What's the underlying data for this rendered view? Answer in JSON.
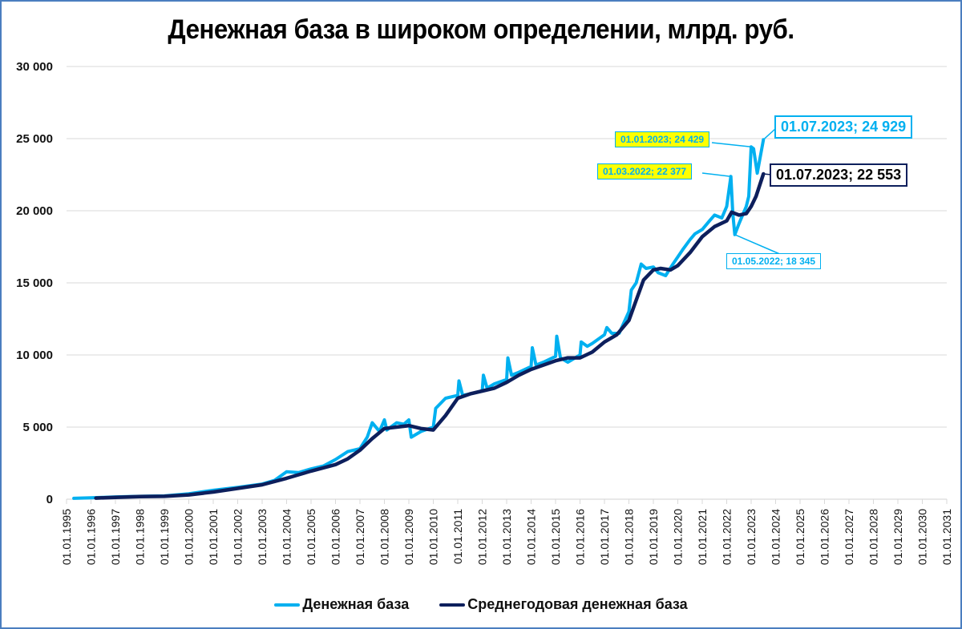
{
  "chart_data": {
    "type": "line",
    "title": "Денежная база в широком определении, млрд. руб.",
    "xlabel": "",
    "ylabel": "",
    "ylim": [
      0,
      30000
    ],
    "xlim": [
      "01.01.1995",
      "01.01.2031"
    ],
    "grid": true,
    "legend_position": "bottom",
    "y_ticks": [
      "0",
      "5 000",
      "10 000",
      "15 000",
      "20 000",
      "25 000",
      "30 000"
    ],
    "x_ticks": [
      "01.01.1995",
      "01.01.1996",
      "01.01.1997",
      "01.01.1998",
      "01.01.1999",
      "01.01.2000",
      "01.01.2001",
      "01.01.2002",
      "01.01.2003",
      "01.01.2004",
      "01.01.2005",
      "01.01.2006",
      "01.01.2007",
      "01.01.2008",
      "01.01.2009",
      "01.01.2010",
      "01.01.2011",
      "01.01.2012",
      "01.01.2013",
      "01.01.2014",
      "01.01.2015",
      "01.01.2016",
      "01.01.2017",
      "01.01.2018",
      "01.01.2019",
      "01.01.2020",
      "01.01.2021",
      "01.01.2022",
      "01.01.2023",
      "01.01.2024",
      "01.01.2025",
      "01.01.2026",
      "01.01.2027",
      "01.01.2028",
      "01.01.2029",
      "01.01.2030",
      "01.01.2031"
    ],
    "series": [
      {
        "name": "Денежная база",
        "color": "#00b0f0",
        "points": [
          [
            1995.3,
            60
          ],
          [
            1996.0,
            100
          ],
          [
            1996.5,
            130
          ],
          [
            1997.0,
            160
          ],
          [
            1998.0,
            200
          ],
          [
            1999.0,
            230
          ],
          [
            2000.0,
            380
          ],
          [
            2001.0,
            620
          ],
          [
            2002.0,
            820
          ],
          [
            2003.0,
            1050
          ],
          [
            2003.5,
            1300
          ],
          [
            2004.0,
            1900
          ],
          [
            2004.5,
            1850
          ],
          [
            2005.0,
            2100
          ],
          [
            2005.5,
            2300
          ],
          [
            2006.0,
            2750
          ],
          [
            2006.5,
            3300
          ],
          [
            2007.0,
            3500
          ],
          [
            2007.3,
            4300
          ],
          [
            2007.5,
            5300
          ],
          [
            2007.8,
            4700
          ],
          [
            2008.0,
            5500
          ],
          [
            2008.1,
            4800
          ],
          [
            2008.5,
            5300
          ],
          [
            2008.8,
            5200
          ],
          [
            2009.0,
            5500
          ],
          [
            2009.1,
            4300
          ],
          [
            2009.5,
            4700
          ],
          [
            2010.0,
            5000
          ],
          [
            2010.1,
            6300
          ],
          [
            2010.5,
            7000
          ],
          [
            2011.0,
            7200
          ],
          [
            2011.05,
            8200
          ],
          [
            2011.2,
            7200
          ],
          [
            2011.5,
            7300
          ],
          [
            2012.0,
            7500
          ],
          [
            2012.05,
            8600
          ],
          [
            2012.2,
            7700
          ],
          [
            2012.5,
            8000
          ],
          [
            2013.0,
            8300
          ],
          [
            2013.05,
            9800
          ],
          [
            2013.2,
            8600
          ],
          [
            2013.5,
            8800
          ],
          [
            2014.0,
            9200
          ],
          [
            2014.05,
            10500
          ],
          [
            2014.2,
            9300
          ],
          [
            2014.5,
            9500
          ],
          [
            2015.0,
            9900
          ],
          [
            2015.05,
            11300
          ],
          [
            2015.2,
            9800
          ],
          [
            2015.5,
            9500
          ],
          [
            2016.0,
            10000
          ],
          [
            2016.05,
            10900
          ],
          [
            2016.3,
            10600
          ],
          [
            2016.5,
            10800
          ],
          [
            2017.0,
            11400
          ],
          [
            2017.1,
            11900
          ],
          [
            2017.3,
            11500
          ],
          [
            2017.6,
            11500
          ],
          [
            2018.0,
            13000
          ],
          [
            2018.1,
            14500
          ],
          [
            2018.3,
            15000
          ],
          [
            2018.5,
            16300
          ],
          [
            2018.7,
            16000
          ],
          [
            2019.0,
            16100
          ],
          [
            2019.2,
            15700
          ],
          [
            2019.5,
            15500
          ],
          [
            2019.8,
            16300
          ],
          [
            2020.0,
            16800
          ],
          [
            2020.2,
            17300
          ],
          [
            2020.5,
            18000
          ],
          [
            2020.7,
            18400
          ],
          [
            2021.0,
            18700
          ],
          [
            2021.3,
            19300
          ],
          [
            2021.5,
            19700
          ],
          [
            2021.8,
            19500
          ],
          [
            2022.0,
            20300
          ],
          [
            2022.17,
            22377
          ],
          [
            2022.25,
            19800
          ],
          [
            2022.33,
            18345
          ],
          [
            2022.5,
            19100
          ],
          [
            2022.8,
            20300
          ],
          [
            2022.9,
            21000
          ],
          [
            2023.0,
            24429
          ],
          [
            2023.1,
            24300
          ],
          [
            2023.25,
            22600
          ],
          [
            2023.5,
            24929
          ]
        ]
      },
      {
        "name": "Среднегодовая денежная база",
        "color": "#0d1f5c",
        "points": [
          [
            1996.2,
            80
          ],
          [
            1997.0,
            130
          ],
          [
            1998.0,
            180
          ],
          [
            1999.0,
            200
          ],
          [
            2000.0,
            300
          ],
          [
            2001.0,
            500
          ],
          [
            2002.0,
            750
          ],
          [
            2003.0,
            1000
          ],
          [
            2004.0,
            1450
          ],
          [
            2005.0,
            1950
          ],
          [
            2006.0,
            2400
          ],
          [
            2006.5,
            2800
          ],
          [
            2007.0,
            3400
          ],
          [
            2007.5,
            4200
          ],
          [
            2008.0,
            4900
          ],
          [
            2008.5,
            5000
          ],
          [
            2009.0,
            5100
          ],
          [
            2009.5,
            4900
          ],
          [
            2010.0,
            4800
          ],
          [
            2010.5,
            5800
          ],
          [
            2011.0,
            7000
          ],
          [
            2011.5,
            7300
          ],
          [
            2012.0,
            7500
          ],
          [
            2012.5,
            7700
          ],
          [
            2013.0,
            8100
          ],
          [
            2013.5,
            8600
          ],
          [
            2014.0,
            9000
          ],
          [
            2014.5,
            9300
          ],
          [
            2015.0,
            9600
          ],
          [
            2015.5,
            9800
          ],
          [
            2016.0,
            9800
          ],
          [
            2016.5,
            10200
          ],
          [
            2017.0,
            10900
          ],
          [
            2017.5,
            11400
          ],
          [
            2018.0,
            12400
          ],
          [
            2018.3,
            13800
          ],
          [
            2018.6,
            15200
          ],
          [
            2019.0,
            15900
          ],
          [
            2019.3,
            16000
          ],
          [
            2019.7,
            15900
          ],
          [
            2020.0,
            16200
          ],
          [
            2020.5,
            17100
          ],
          [
            2021.0,
            18200
          ],
          [
            2021.5,
            18900
          ],
          [
            2022.0,
            19300
          ],
          [
            2022.2,
            19900
          ],
          [
            2022.5,
            19700
          ],
          [
            2022.8,
            19800
          ],
          [
            2023.0,
            20300
          ],
          [
            2023.2,
            21000
          ],
          [
            2023.5,
            22553
          ]
        ]
      }
    ],
    "annotations": [
      {
        "text": "01.01.2023; 24 429",
        "series": "Денежная база",
        "x": "01.01.2023",
        "y": 24429
      },
      {
        "text": "01.03.2022; 22 377",
        "series": "Денежная база",
        "x": "01.03.2022",
        "y": 22377
      },
      {
        "text": "01.07.2023;  24 929",
        "series": "Денежная база",
        "x": "01.07.2023",
        "y": 24929
      },
      {
        "text": "01.07.2023;  22 553",
        "series": "Среднегодовая денежная база",
        "x": "01.07.2023",
        "y": 22553
      },
      {
        "text": "01.05.2022; 18 345",
        "series": "Денежная база",
        "x": "01.05.2022",
        "y": 18345
      }
    ]
  },
  "header": {
    "title": "Денежная база в широком определении, млрд. руб."
  },
  "legend": {
    "items": [
      {
        "label": "Денежная база",
        "color": "#00b0f0"
      },
      {
        "label": "Среднегодовая денежная база",
        "color": "#0d1f5c"
      }
    ]
  },
  "callouts": {
    "c1": "01.01.2023; 24 429",
    "c2": "01.03.2022; 22 377",
    "c3": "01.07.2023;  24 929",
    "c4": "01.07.2023;  22 553",
    "c5": "01.05.2022; 18 345"
  },
  "colors": {
    "light_series": "#00b0f0",
    "dark_series": "#0d1f5c",
    "callout_fill": "#ffff00",
    "frame": "#4a7ebf",
    "grid": "#d9d9d9"
  }
}
